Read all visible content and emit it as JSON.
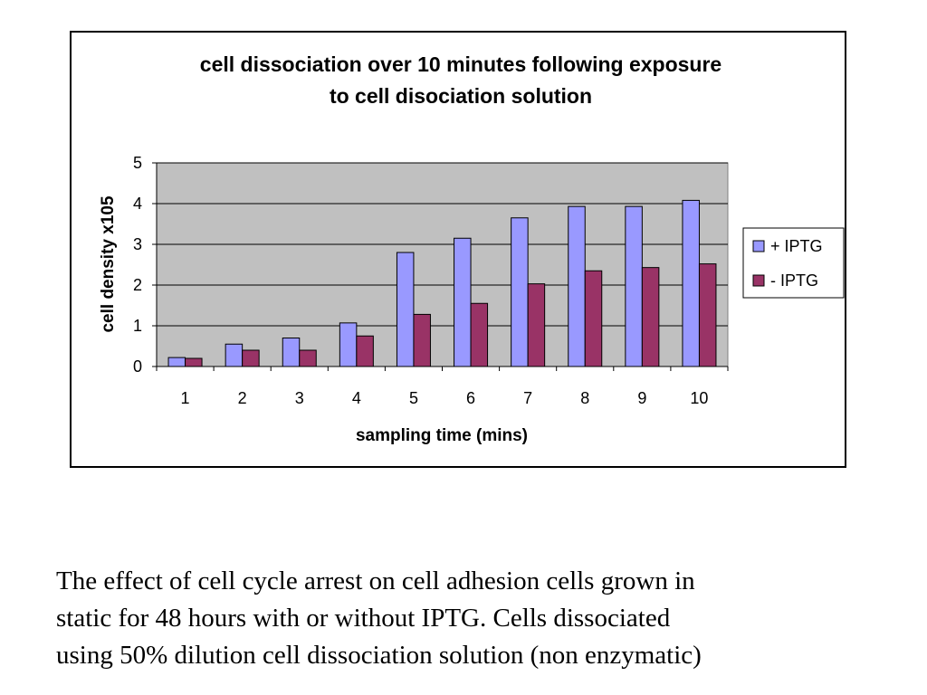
{
  "chart_data": {
    "type": "bar",
    "title_lines": [
      "cell dissociation over 10 minutes following exposure",
      "to cell disociation solution"
    ],
    "xlabel": "sampling time (mins)",
    "ylabel": "cell density x105",
    "categories": [
      "1",
      "2",
      "3",
      "4",
      "5",
      "6",
      "7",
      "8",
      "9",
      "10"
    ],
    "y_ticks": [
      "0",
      "1",
      "2",
      "3",
      "4",
      "5"
    ],
    "ylim": [
      0,
      5
    ],
    "grid": true,
    "plot_background": "#c0c0c0",
    "legend_position": "right",
    "series": [
      {
        "name": "+ IPTG",
        "color": "#9999ff",
        "values": [
          0.22,
          0.55,
          0.7,
          1.07,
          2.8,
          3.15,
          3.65,
          3.93,
          3.93,
          4.08
        ]
      },
      {
        "name": "- IPTG",
        "color": "#993366",
        "values": [
          0.2,
          0.4,
          0.4,
          0.75,
          1.28,
          1.55,
          2.03,
          2.35,
          2.43,
          2.52
        ]
      }
    ]
  },
  "caption_lines": [
    "The effect of cell cycle arrest on cell adhesion cells grown in",
    "static for 48 hours with or without IPTG. Cells dissociated",
    "using 50% dilution cell dissociation solution (non enzymatic)"
  ]
}
